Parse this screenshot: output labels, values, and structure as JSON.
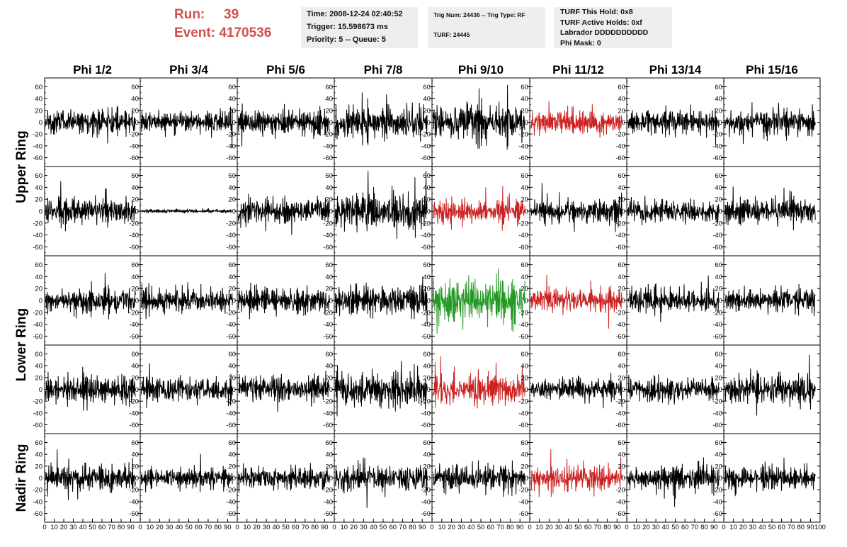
{
  "run": {
    "label": "Run:",
    "value": "39"
  },
  "event": {
    "label": "Event:",
    "value": "4170536"
  },
  "time_box": {
    "time": "Time: 2008-12-24 02:40:52",
    "trigger": "Trigger: 15.598673 ms",
    "priority": "Priority: 5 -- Queue: 5"
  },
  "trig_box": {
    "trig": "Trig Num: 24436 -- Trig Type: RF",
    "turf": "TURF: 24445"
  },
  "turf_box": {
    "this_hold": "TURF This Hold: 0x8",
    "active_holds": "TURF Active Holds: 0xf",
    "labrador": "Labrador DDDDDDDDDD",
    "phi_mask": "Phi Mask: 0"
  },
  "colors": {
    "trace": "#000000",
    "trace_red": "#cc2222",
    "trace_green": "#229922",
    "header_red": "#d05050",
    "info_bg": "#eeeeee"
  },
  "chart_data": {
    "type": "line",
    "columns": [
      "Phi 1/2",
      "Phi 3/4",
      "Phi 5/6",
      "Phi 7/8",
      "Phi 9/10",
      "Phi 11/12",
      "Phi 13/14",
      "Phi 15/16"
    ],
    "rings": [
      "Upper Ring",
      "Lower Ring",
      "Nadir Ring"
    ],
    "panel_rows": 5,
    "ylim": [
      -75,
      75
    ],
    "yticks": [
      -60,
      -40,
      -20,
      0,
      20,
      40,
      60
    ],
    "xlim": [
      0,
      100
    ],
    "xticks": [
      0,
      10,
      20,
      30,
      40,
      50,
      60,
      70,
      80,
      90,
      100
    ],
    "samples_per_trace": 250,
    "traces": [
      [
        {
          "amp": 12,
          "color": "black"
        },
        {
          "amp": 11,
          "color": "black"
        },
        {
          "amp": 12,
          "color": "black"
        },
        {
          "amp": 16,
          "color": "black"
        },
        {
          "amp": 18,
          "color": "black"
        },
        {
          "amp": 12,
          "color": "red"
        },
        {
          "amp": 11,
          "color": "black"
        },
        {
          "amp": 14,
          "color": "black"
        }
      ],
      [
        {
          "amp": 13,
          "color": "black"
        },
        {
          "amp": 2,
          "color": "black"
        },
        {
          "amp": 14,
          "color": "black"
        },
        {
          "amp": 20,
          "color": "black"
        },
        {
          "amp": 13,
          "color": "red"
        },
        {
          "amp": 12,
          "color": "black"
        },
        {
          "amp": 12,
          "color": "black"
        },
        {
          "amp": 13,
          "color": "black"
        }
      ],
      [
        {
          "amp": 12,
          "color": "black"
        },
        {
          "amp": 12,
          "color": "black"
        },
        {
          "amp": 13,
          "color": "black"
        },
        {
          "amp": 15,
          "color": "black"
        },
        {
          "amp": 22,
          "color": "green"
        },
        {
          "amp": 12,
          "color": "red"
        },
        {
          "amp": 12,
          "color": "black"
        },
        {
          "amp": 12,
          "color": "black"
        }
      ],
      [
        {
          "amp": 13,
          "color": "black"
        },
        {
          "amp": 13,
          "color": "black"
        },
        {
          "amp": 14,
          "color": "black"
        },
        {
          "amp": 17,
          "color": "black"
        },
        {
          "amp": 14,
          "color": "red"
        },
        {
          "amp": 11,
          "color": "black"
        },
        {
          "amp": 12,
          "color": "black"
        },
        {
          "amp": 15,
          "color": "black"
        }
      ],
      [
        {
          "amp": 13,
          "color": "black"
        },
        {
          "amp": 10,
          "color": "black"
        },
        {
          "amp": 12,
          "color": "black"
        },
        {
          "amp": 15,
          "color": "black"
        },
        {
          "amp": 14,
          "color": "black"
        },
        {
          "amp": 13,
          "color": "red"
        },
        {
          "amp": 12,
          "color": "black"
        },
        {
          "amp": 12,
          "color": "black"
        }
      ]
    ]
  }
}
